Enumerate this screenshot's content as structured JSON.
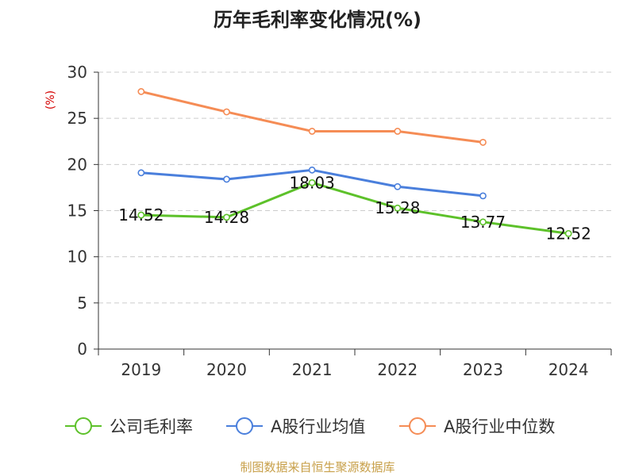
{
  "chart_data": {
    "type": "line",
    "title": "历年毛利率变化情况(%)",
    "ylabel": "(%)",
    "xlabel": "",
    "categories": [
      "2019",
      "2020",
      "2021",
      "2022",
      "2023",
      "2024"
    ],
    "ylim": [
      0,
      30
    ],
    "yticks": [
      0,
      5,
      10,
      15,
      20,
      25,
      30
    ],
    "grid": "horizontal-dashed",
    "legend_position": "bottom",
    "series": [
      {
        "name": "公司毛利率",
        "color": "#5dc12a",
        "values": [
          14.52,
          14.28,
          18.03,
          15.28,
          13.77,
          12.52
        ],
        "labels": [
          "14.52",
          "14.28",
          "18.03",
          "15.28",
          "13.77",
          "12.52"
        ]
      },
      {
        "name": "A股行业均值",
        "color": "#4a7fdc",
        "values": [
          19.1,
          18.4,
          19.4,
          17.6,
          16.6,
          null
        ]
      },
      {
        "name": "A股行业中位数",
        "color": "#f58c55",
        "values": [
          27.9,
          25.7,
          23.6,
          23.6,
          22.4,
          null
        ]
      }
    ]
  },
  "source_text": "制图数据来自恒生聚源数据库"
}
